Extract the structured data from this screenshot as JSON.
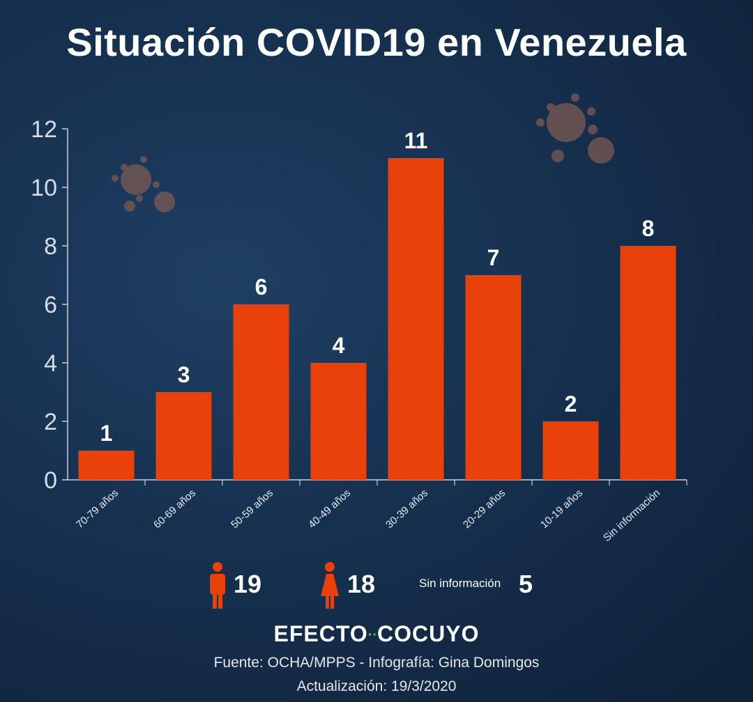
{
  "title": "Situación COVID19 en Venezuela",
  "colors": {
    "bar": "#e84109",
    "axis": "#c9d1d9",
    "accent": "#4cd137"
  },
  "chart_data": {
    "type": "bar",
    "title": "Situación COVID19 en Venezuela",
    "categories": [
      "70-79 años",
      "60-69 años",
      "50-59 años",
      "40-49 años",
      "30-39 años",
      "20-29 años",
      "10-19 años",
      "Sin información"
    ],
    "values": [
      1,
      3,
      6,
      4,
      11,
      7,
      2,
      8
    ],
    "data_labels": [
      "1",
      "3",
      "6",
      "4",
      "11",
      "7",
      "2",
      "8"
    ],
    "xlabel": "",
    "ylabel": "",
    "ylim": [
      0,
      12
    ],
    "yticks": [
      0,
      2,
      4,
      6,
      8,
      10,
      12
    ],
    "grid": false,
    "legend": "none"
  },
  "legend": {
    "male_count": "19",
    "female_count": "18",
    "unknown_label": "Sin información",
    "unknown_count": "5"
  },
  "brand": {
    "left": "EFECTO",
    "dots": "··",
    "right": "COCUYO"
  },
  "footer": {
    "source": "Fuente: OCHA/MPPS - Infografía: Gina Domingos",
    "updated": "Actualización: 19/3/2020"
  }
}
